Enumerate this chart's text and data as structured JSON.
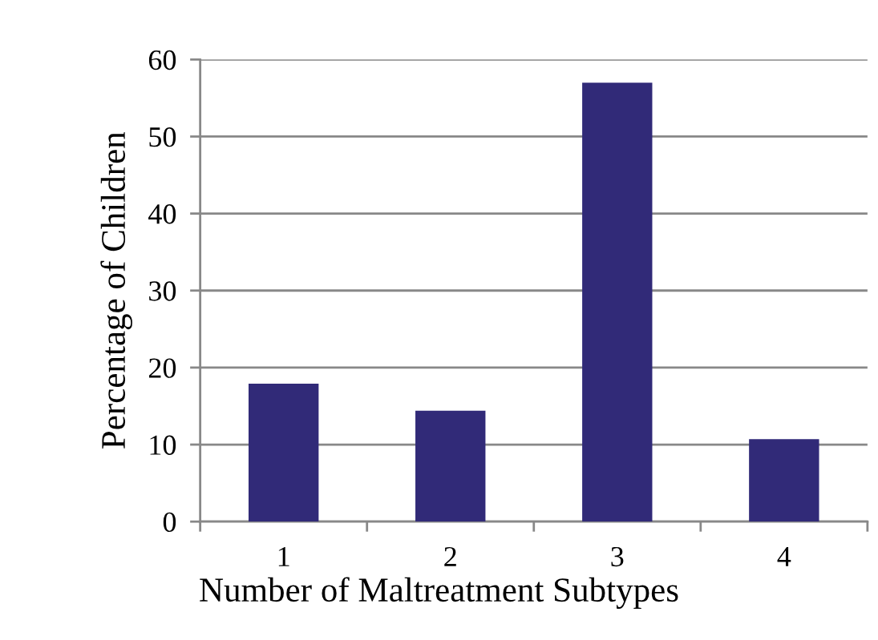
{
  "chart_data": {
    "type": "bar",
    "xlabel": "Number of Maltreatment Subtypes",
    "ylabel": "Percentage of Children",
    "categories": [
      "1",
      "2",
      "3",
      "4"
    ],
    "series": [
      {
        "color": "#312a78",
        "values": [
          17.9,
          14.4,
          57.0,
          10.7
        ]
      }
    ],
    "ylim": [
      0,
      60
    ],
    "yticks": [
      0,
      10,
      20,
      30,
      40,
      50,
      60
    ],
    "grid": "y",
    "legend": false
  }
}
